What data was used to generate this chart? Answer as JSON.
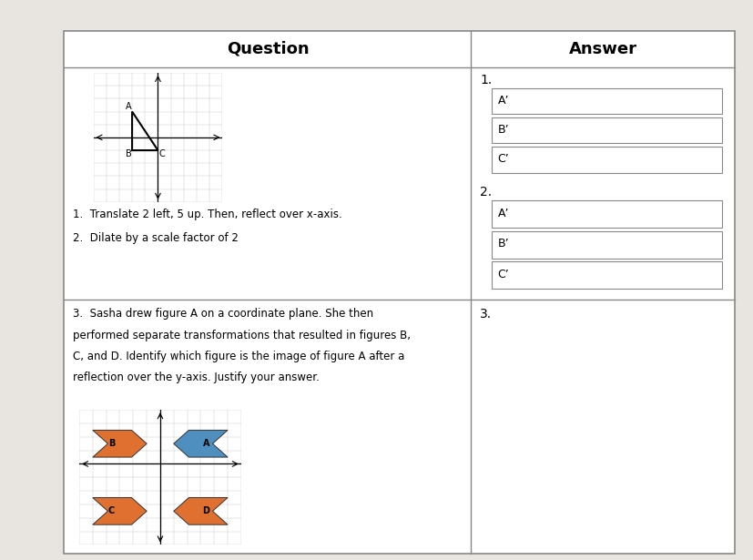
{
  "background_color": "#e8e5e0",
  "border_color": "#888888",
  "title_question": "Question",
  "title_answer": "Answer",
  "q1_text_1": "1.  Translate 2 left, 5 up. Then, reflect over x-axis.",
  "q1_text_2": "2.  Dilate by a scale factor of 2",
  "q3_line1": "3.  Sasha drew figure A on a coordinate plane. She then",
  "q3_line2": "performed separate transformations that resulted in figures B,",
  "q3_line3": "C, and D. Identify which figure is the image of figure A after a",
  "q3_line4": "reflection over the y-axis. Justify your answer.",
  "ans1_label": "1.",
  "ans2_label": "2.",
  "ans3_label": "3.",
  "prime_labels": [
    "A’",
    "B’",
    "C’"
  ],
  "orange_color": "#e07030",
  "blue_color": "#4f8fc0",
  "tri_A": [
    -2,
    2
  ],
  "tri_B": [
    -2,
    -1
  ],
  "tri_C": [
    0,
    -1
  ],
  "grid1_N": 5,
  "grid2_xlim": [
    -6,
    6
  ],
  "grid2_ylim": [
    -6,
    4
  ]
}
